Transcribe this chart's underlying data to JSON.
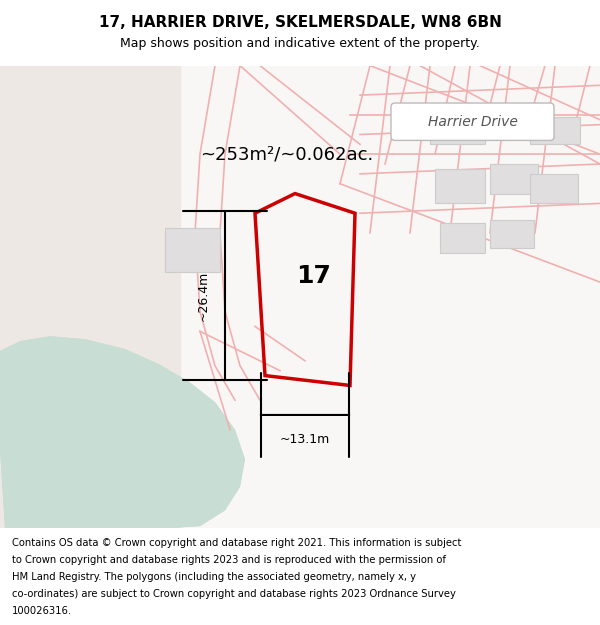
{
  "title": "17, HARRIER DRIVE, SKELMERSDALE, WN8 6BN",
  "subtitle": "Map shows position and indicative extent of the property.",
  "area_text": "~253m²/~0.062ac.",
  "number_label": "17",
  "dim_vertical": "~26.4m",
  "dim_horizontal": "~13.1m",
  "harrier_drive_label": "Harrier Drive",
  "footer": "Contains OS data © Crown copyright and database right 2021. This information is subject to Crown copyright and database rights 2023 and is reproduced with the permission of HM Land Registry. The polygons (including the associated geometry, namely x, y co-ordinates) are subject to Crown copyright and database rights 2023 Ordnance Survey 100026316.",
  "bg_color": "#f5f0ee",
  "map_bg": "#f9f7f5",
  "green_region_color": "#c8ddd4",
  "beige_region_color": "#ede8e3",
  "road_line_color": "#f0b0b0",
  "property_outline_color": "#cc0000",
  "building_fill": "#e0dede",
  "title_fontsize": 11,
  "subtitle_fontsize": 9,
  "footer_fontsize": 7.2
}
